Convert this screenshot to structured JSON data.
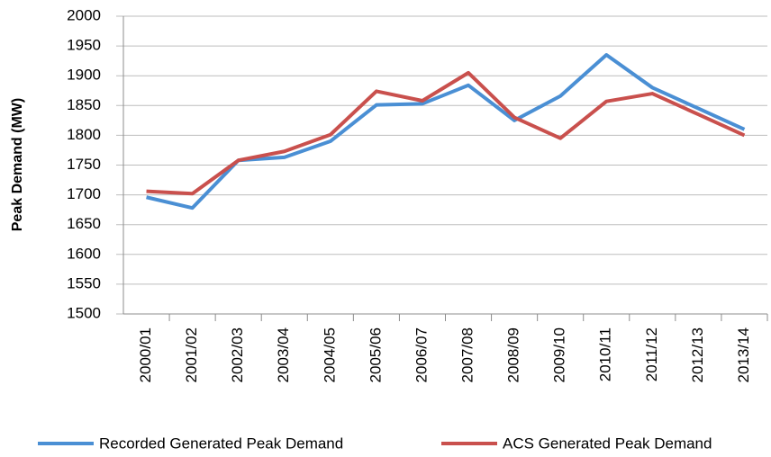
{
  "chart_data": {
    "type": "line",
    "y_label": "Peak Demand (MW)",
    "categories": [
      "2000/01",
      "2001/02",
      "2002/03",
      "2003/04",
      "2004/05",
      "2005/06",
      "2006/07",
      "2007/08",
      "2008/09",
      "2009/10",
      "2010/11",
      "2011/12",
      "2012/13",
      "2013/14"
    ],
    "series": [
      {
        "name": "Recorded Generated Peak Demand",
        "color": "#4a8fd4",
        "values": [
          1696,
          1678,
          1758,
          1763,
          1790,
          1851,
          1853,
          1884,
          1825,
          1866,
          1935,
          1880,
          1845,
          1810
        ]
      },
      {
        "name": "ACS Generated Peak Demand",
        "color": "#c9504d",
        "values": [
          1706,
          1702,
          1758,
          1773,
          1801,
          1874,
          1858,
          1905,
          1830,
          1795,
          1857,
          1870,
          1835,
          1800
        ]
      }
    ],
    "ylim": [
      1500,
      2000
    ],
    "yticks": [
      1500,
      1550,
      1600,
      1650,
      1700,
      1750,
      1800,
      1850,
      1900,
      1950,
      2000
    ],
    "grid": true,
    "legend": "bottom"
  }
}
